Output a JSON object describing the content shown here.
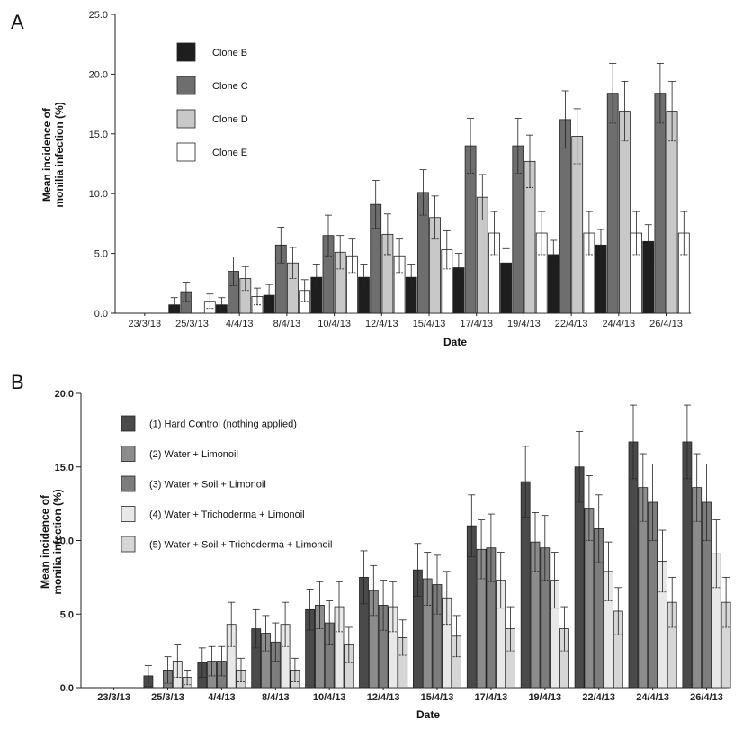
{
  "chart_data": [
    {
      "type": "bar",
      "panel": "A",
      "xlabel": "Date",
      "ylabel_lines": [
        "Mean incidence of",
        "monilia infection (%)"
      ],
      "ylim": [
        0,
        25
      ],
      "yticks": [
        "0.0",
        "5.0",
        "10.0",
        "15.0",
        "20.0",
        "25.0"
      ],
      "categories": [
        "23/3/13",
        "25/3/13",
        "4/4/13",
        "8/4/13",
        "10/4/13",
        "12/4/13",
        "15/4/13",
        "17/4/13",
        "19/4/13",
        "22/4/13",
        "24/4/13",
        "26/4/13"
      ],
      "series": [
        {
          "name": "Clone B",
          "color": "#1e1e1e",
          "values": [
            0,
            0.7,
            0.7,
            1.5,
            3.0,
            3.0,
            3.0,
            3.8,
            4.2,
            4.9,
            5.7,
            6.0
          ],
          "errors": [
            0,
            0.6,
            0.6,
            0.9,
            1.1,
            1.1,
            1.1,
            1.2,
            1.2,
            1.2,
            1.3,
            1.4
          ]
        },
        {
          "name": "Clone C",
          "color": "#6e6e6e",
          "values": [
            0,
            1.8,
            3.5,
            5.7,
            6.5,
            9.1,
            10.1,
            14.0,
            14.0,
            16.2,
            18.4,
            18.4
          ],
          "errors": [
            0,
            0.8,
            1.2,
            1.5,
            1.7,
            2.0,
            1.9,
            2.3,
            2.3,
            2.4,
            2.5,
            2.5
          ]
        },
        {
          "name": "Clone D",
          "color": "#c8c8c8",
          "values": [
            0,
            0,
            2.9,
            4.2,
            5.1,
            6.6,
            8.0,
            9.7,
            12.7,
            14.8,
            16.9,
            16.9
          ],
          "errors": [
            0,
            0,
            1.0,
            1.3,
            1.4,
            1.7,
            1.8,
            1.9,
            2.2,
            2.3,
            2.5,
            2.5
          ]
        },
        {
          "name": "Clone E",
          "color": "#ffffff",
          "values": [
            0,
            1.0,
            1.4,
            1.9,
            4.8,
            4.8,
            5.3,
            6.7,
            6.7,
            6.7,
            6.7,
            6.7
          ],
          "errors": [
            0,
            0.6,
            0.7,
            0.9,
            1.4,
            1.4,
            1.6,
            1.8,
            1.8,
            1.8,
            1.8,
            1.8
          ]
        }
      ]
    },
    {
      "type": "bar",
      "panel": "B",
      "xlabel": "Date",
      "ylabel_lines": [
        "Mean incidence of",
        "monilia infection (%)"
      ],
      "ylim": [
        0,
        20
      ],
      "yticks": [
        "0.0",
        "5.0",
        "10.0",
        "15.0",
        "20.0"
      ],
      "categories": [
        "23/3/13",
        "25/3/13",
        "4/4/13",
        "8/4/13",
        "10/4/13",
        "12/4/13",
        "15/4/13",
        "17/4/13",
        "19/4/13",
        "22/4/13",
        "24/4/13",
        "26/4/13"
      ],
      "series": [
        {
          "name": "(1) Hard Control (nothing applied)",
          "color": "#4a4a4a",
          "values": [
            0,
            0.8,
            1.7,
            4.0,
            5.3,
            7.5,
            8.0,
            11.0,
            14.0,
            15.0,
            16.7,
            16.7
          ],
          "errors": [
            0,
            0.7,
            1.0,
            1.3,
            1.4,
            1.8,
            1.8,
            2.1,
            2.4,
            2.4,
            2.5,
            2.5
          ]
        },
        {
          "name": "(2) Water + Limonoil",
          "color": "#8c8c8c",
          "values": [
            0,
            0,
            1.8,
            3.7,
            5.6,
            6.6,
            7.4,
            9.4,
            9.9,
            12.2,
            13.6,
            13.6
          ],
          "errors": [
            0,
            0,
            1.0,
            1.2,
            1.6,
            1.7,
            1.8,
            2.0,
            2.0,
            2.2,
            2.3,
            2.3
          ]
        },
        {
          "name": "(3) Water + Soil + Limonoil",
          "color": "#7d7d7d",
          "values": [
            0,
            1.2,
            1.8,
            3.1,
            4.4,
            5.6,
            7.0,
            9.5,
            9.5,
            10.8,
            12.6,
            12.6
          ],
          "errors": [
            0,
            0.9,
            1.0,
            1.3,
            1.5,
            1.7,
            2.0,
            2.3,
            2.2,
            2.3,
            2.6,
            2.6
          ]
        },
        {
          "name": "(4) Water + Trichoderma + Limonoil",
          "color": "#e8e8e8",
          "values": [
            0,
            1.8,
            4.3,
            4.3,
            5.5,
            5.5,
            6.1,
            7.3,
            7.3,
            7.9,
            8.6,
            9.1
          ],
          "errors": [
            0,
            1.1,
            1.5,
            1.5,
            1.7,
            1.7,
            1.8,
            1.9,
            1.9,
            2.0,
            2.1,
            2.3
          ]
        },
        {
          "name": "(5) Water + Soil + Trichoderma + Limonoil",
          "color": "#d6d6d6",
          "values": [
            0,
            0.7,
            1.2,
            1.2,
            2.9,
            3.4,
            3.5,
            4.0,
            4.0,
            5.2,
            5.8,
            5.8
          ],
          "errors": [
            0,
            0.5,
            0.8,
            0.8,
            1.2,
            1.2,
            1.4,
            1.5,
            1.5,
            1.6,
            1.7,
            1.7
          ]
        }
      ]
    }
  ]
}
